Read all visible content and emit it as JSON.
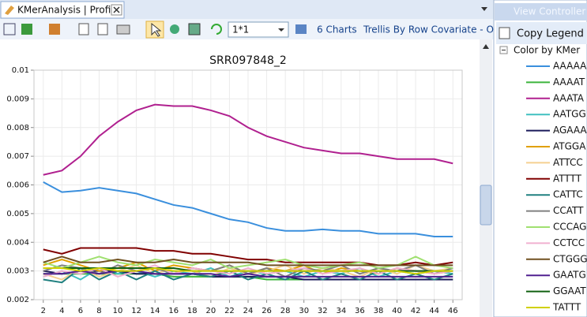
{
  "tab": {
    "title": "KMerAnalysis | Profile"
  },
  "toolbar": {
    "layout_value": "1*1",
    "charts": "6 Charts",
    "trellis": "Trellis By Row Covariate - Obse"
  },
  "panel": {
    "header": "View Controller",
    "copy_legend": "Copy Legend wi",
    "legend_title": "Color by KMer"
  },
  "chart_data": {
    "type": "line",
    "title": "SRR097848_2",
    "x": [
      2,
      4,
      6,
      8,
      10,
      12,
      14,
      16,
      18,
      20,
      22,
      24,
      26,
      28,
      30,
      32,
      34,
      36,
      38,
      40,
      42,
      44,
      46
    ],
    "xlim": [
      1,
      47
    ],
    "xticks": [
      2,
      4,
      6,
      8,
      10,
      12,
      14,
      16,
      18,
      20,
      22,
      24,
      26,
      28,
      30,
      32,
      34,
      36,
      38,
      40,
      42,
      44,
      46
    ],
    "ylim": [
      0.002,
      0.01
    ],
    "yticks": [
      0.002,
      0.003,
      0.004,
      0.005,
      0.006,
      0.007,
      0.008,
      0.009,
      0.01
    ],
    "grid": true,
    "series": [
      {
        "name": "AAAAA",
        "color": "#3a8fdd",
        "values": [
          0.0061,
          0.00575,
          0.0058,
          0.0059,
          0.0058,
          0.0057,
          0.0055,
          0.0053,
          0.0052,
          0.005,
          0.0048,
          0.0047,
          0.0045,
          0.0044,
          0.0044,
          0.00445,
          0.0044,
          0.0044,
          0.0043,
          0.0043,
          0.0043,
          0.0042,
          0.0042
        ]
      },
      {
        "name": "AAAAT",
        "color": "#3cb43c",
        "values": [
          0.0029,
          0.0029,
          0.0029,
          0.0029,
          0.0029,
          0.0029,
          0.0029,
          0.0028,
          0.0028,
          0.0028,
          0.0028,
          0.0028,
          0.0027,
          0.0027,
          0.0027,
          0.0027,
          0.0027,
          0.0027,
          0.0027,
          0.0027,
          0.0027,
          0.0027,
          0.0027
        ]
      },
      {
        "name": "AAATA",
        "color": "#b0208f",
        "values": [
          0.00635,
          0.0065,
          0.007,
          0.0077,
          0.0082,
          0.0086,
          0.0088,
          0.00875,
          0.00875,
          0.0086,
          0.0084,
          0.008,
          0.0077,
          0.0075,
          0.0073,
          0.0072,
          0.0071,
          0.0071,
          0.007,
          0.0069,
          0.0069,
          0.0069,
          0.00675
        ]
      },
      {
        "name": "AATGG",
        "color": "#40c0c0",
        "values": [
          0.0028,
          0.003,
          0.0027,
          0.0031,
          0.0029,
          0.003,
          0.0028,
          0.003,
          0.0029,
          0.0031,
          0.0028,
          0.003,
          0.0029,
          0.003,
          0.0028,
          0.003,
          0.0029,
          0.0031,
          0.0028,
          0.003,
          0.0029,
          0.003,
          0.0029
        ]
      },
      {
        "name": "AGAAA",
        "color": "#1a1a5a",
        "values": [
          0.003,
          0.0029,
          0.003,
          0.003,
          0.003,
          0.0029,
          0.0029,
          0.0029,
          0.0029,
          0.0028,
          0.0028,
          0.0028,
          0.0028,
          0.0028,
          0.0027,
          0.0027,
          0.0027,
          0.0027,
          0.0027,
          0.0027,
          0.0027,
          0.0027,
          0.0027
        ]
      },
      {
        "name": "ATGGA",
        "color": "#e0a000",
        "values": [
          0.0032,
          0.0034,
          0.0032,
          0.003,
          0.0031,
          0.0033,
          0.003,
          0.0032,
          0.0031,
          0.003,
          0.0032,
          0.0029,
          0.0031,
          0.003,
          0.0032,
          0.0029,
          0.0031,
          0.003,
          0.0029,
          0.0031,
          0.003,
          0.0029,
          0.003
        ]
      },
      {
        "name": "ATTCC",
        "color": "#f5d090",
        "values": [
          0.0029,
          0.0027,
          0.0031,
          0.0028,
          0.003,
          0.0032,
          0.0029,
          0.0031,
          0.003,
          0.0028,
          0.0031,
          0.0029,
          0.003,
          0.0032,
          0.0029,
          0.0031,
          0.003,
          0.0028,
          0.0031,
          0.0029,
          0.0032,
          0.003,
          0.0031
        ]
      },
      {
        "name": "ATTTT",
        "color": "#800000",
        "values": [
          0.00375,
          0.0036,
          0.0038,
          0.0038,
          0.0038,
          0.0038,
          0.0037,
          0.0037,
          0.0036,
          0.0036,
          0.0035,
          0.0034,
          0.0034,
          0.0033,
          0.0033,
          0.0033,
          0.0033,
          0.0033,
          0.0032,
          0.0032,
          0.0033,
          0.0032,
          0.0033
        ]
      },
      {
        "name": "CATTC",
        "color": "#208080",
        "values": [
          0.0027,
          0.0026,
          0.0031,
          0.0027,
          0.003,
          0.0027,
          0.003,
          0.0027,
          0.0029,
          0.0028,
          0.003,
          0.0027,
          0.0029,
          0.0027,
          0.003,
          0.0027,
          0.0029,
          0.0027,
          0.003,
          0.0027,
          0.0029,
          0.0027,
          0.0029
        ]
      },
      {
        "name": "CCATT",
        "color": "#808080",
        "values": [
          0.003,
          0.0032,
          0.0031,
          0.0029,
          0.0032,
          0.003,
          0.0031,
          0.0029,
          0.0031,
          0.003,
          0.0032,
          0.0029,
          0.0031,
          0.0028,
          0.0031,
          0.003,
          0.0032,
          0.0029,
          0.0031,
          0.003,
          0.0032,
          0.0029,
          0.0031
        ]
      },
      {
        "name": "CCCAG",
        "color": "#a0e070",
        "values": [
          0.0033,
          0.0031,
          0.0033,
          0.0035,
          0.0033,
          0.0032,
          0.0034,
          0.0033,
          0.0032,
          0.0034,
          0.0031,
          0.0032,
          0.0033,
          0.0034,
          0.0032,
          0.0031,
          0.0032,
          0.0033,
          0.0031,
          0.0032,
          0.0035,
          0.0032,
          0.0031
        ]
      },
      {
        "name": "CCTCC",
        "color": "#f0b0d0",
        "values": [
          0.0028,
          0.003,
          0.0029,
          0.0031,
          0.0028,
          0.003,
          0.0032,
          0.0029,
          0.0031,
          0.003,
          0.0029,
          0.0031,
          0.0029,
          0.003,
          0.0031,
          0.0029,
          0.003,
          0.0031,
          0.0029,
          0.0031,
          0.003,
          0.0029,
          0.003
        ]
      },
      {
        "name": "CTGGG",
        "color": "#705020",
        "values": [
          0.0033,
          0.0035,
          0.0033,
          0.0033,
          0.0034,
          0.0033,
          0.0033,
          0.0034,
          0.0033,
          0.0033,
          0.0033,
          0.0033,
          0.0032,
          0.0032,
          0.0032,
          0.0032,
          0.0032,
          0.0032,
          0.0032,
          0.0032,
          0.0032,
          0.0032,
          0.0032
        ]
      },
      {
        "name": "GAATG",
        "color": "#502090",
        "values": [
          0.0029,
          0.0029,
          0.003,
          0.0029,
          0.003,
          0.003,
          0.0029,
          0.0029,
          0.0029,
          0.0029,
          0.0028,
          0.0029,
          0.0028,
          0.0028,
          0.0028,
          0.0028,
          0.0028,
          0.0028,
          0.0028,
          0.0028,
          0.0028,
          0.0028,
          0.0028
        ]
      },
      {
        "name": "GGAAT",
        "color": "#106010",
        "values": [
          0.0031,
          0.0031,
          0.0031,
          0.0031,
          0.0031,
          0.0031,
          0.0031,
          0.0031,
          0.003,
          0.003,
          0.003,
          0.003,
          0.003,
          0.003,
          0.003,
          0.003,
          0.003,
          0.003,
          0.003,
          0.003,
          0.003,
          0.003,
          0.003
        ]
      },
      {
        "name": "TATTT",
        "color": "#d0d000",
        "values": [
          0.0031,
          0.0031,
          0.003,
          0.0031,
          0.003,
          0.003,
          0.0031,
          0.003,
          0.003,
          0.003,
          0.003,
          0.003,
          0.003,
          0.003,
          0.003,
          0.003,
          0.003,
          0.003,
          0.003,
          0.003,
          0.0029,
          0.003,
          0.003
        ]
      }
    ]
  }
}
